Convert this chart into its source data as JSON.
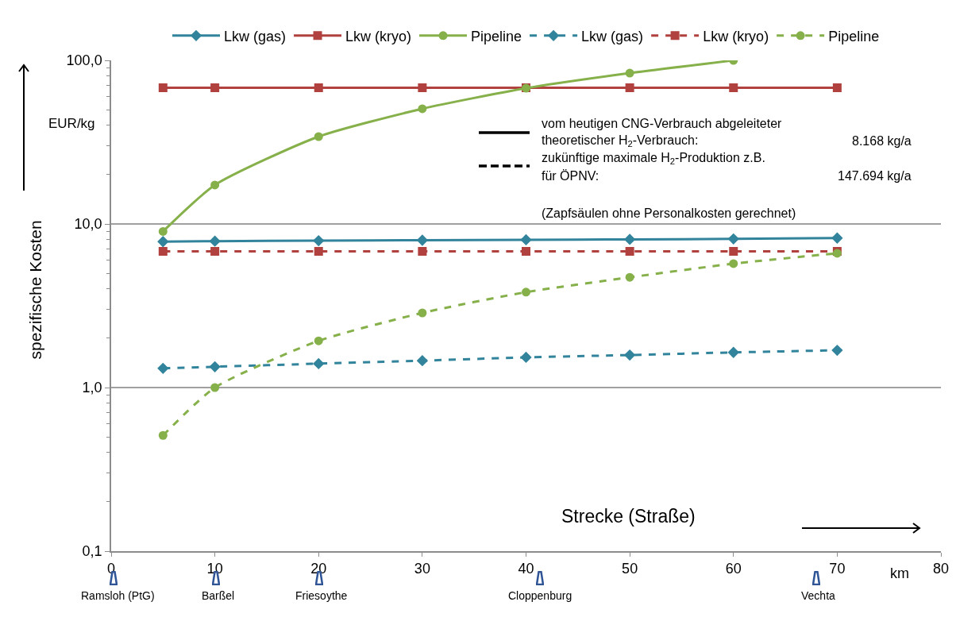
{
  "chart_data": {
    "type": "line",
    "xlabel": "Strecke (Straße)",
    "ylabel": "spezifische Kosten",
    "x": [
      5,
      10,
      20,
      30,
      40,
      50,
      60,
      70
    ],
    "series": [
      {
        "name": "Lkw (gas)",
        "color": "#31849b",
        "marker": "diamond",
        "line_style": "solid",
        "values": [
          7.8,
          7.85,
          7.9,
          7.95,
          8.0,
          8.05,
          8.1,
          8.2
        ]
      },
      {
        "name": "Lkw (kryo)",
        "color": "#b0413e",
        "marker": "square",
        "line_style": "solid",
        "values": [
          68,
          68,
          68,
          68,
          68,
          68,
          68,
          68
        ]
      },
      {
        "name": "Pipeline",
        "color": "#86b04a",
        "marker": "circle",
        "line_style": "solid",
        "values": [
          9.0,
          17.3,
          34.2,
          50.6,
          67.6,
          83.6,
          100,
          null
        ]
      },
      {
        "name": "Lkw (gas)",
        "color": "#31849b",
        "marker": "diamond",
        "line_style": "dashed",
        "values": [
          1.31,
          1.34,
          1.4,
          1.46,
          1.53,
          1.58,
          1.64,
          1.69
        ]
      },
      {
        "name": "Lkw (kryo)",
        "color": "#b0413e",
        "marker": "square",
        "line_style": "dashed",
        "values": [
          6.8,
          6.8,
          6.8,
          6.8,
          6.8,
          6.8,
          6.8,
          6.8
        ]
      },
      {
        "name": "Pipeline",
        "color": "#86b04a",
        "marker": "circle",
        "line_style": "dashed",
        "values": [
          0.51,
          1.0,
          1.93,
          2.86,
          3.83,
          4.72,
          5.72,
          6.62
        ]
      }
    ],
    "log": "y",
    "ylim": [
      0.1,
      100
    ],
    "yticks": [
      {
        "value": 0.1,
        "label": "0,1"
      },
      {
        "value": 1,
        "label": "1,0"
      },
      {
        "value": 10,
        "label": "10,0"
      },
      {
        "value": 100,
        "label": "100,0"
      }
    ],
    "xlim": [
      0,
      80
    ],
    "xticks": [
      0,
      10,
      20,
      30,
      40,
      50,
      60,
      70,
      80
    ],
    "grid": "y",
    "legend": "top",
    "annotations": [
      "EUR/kg",
      "km",
      "vom heutigen CNG-Verbrauch abgeleiteter",
      "theoretischer H$_{2}$-Verbrauch:",
      "8.168 kg/a",
      "zukünftige maximale H$_{2}$-Produktion z.B.",
      "für ÖPNV:",
      "147.694 kg/a",
      "(Zapfsäulen ohne Personalkosten gerechnet)",
      "Ramsloh (PtG)",
      "Barßel",
      "Friesoythe",
      "Cloppenburg",
      "Vechta"
    ]
  }
}
